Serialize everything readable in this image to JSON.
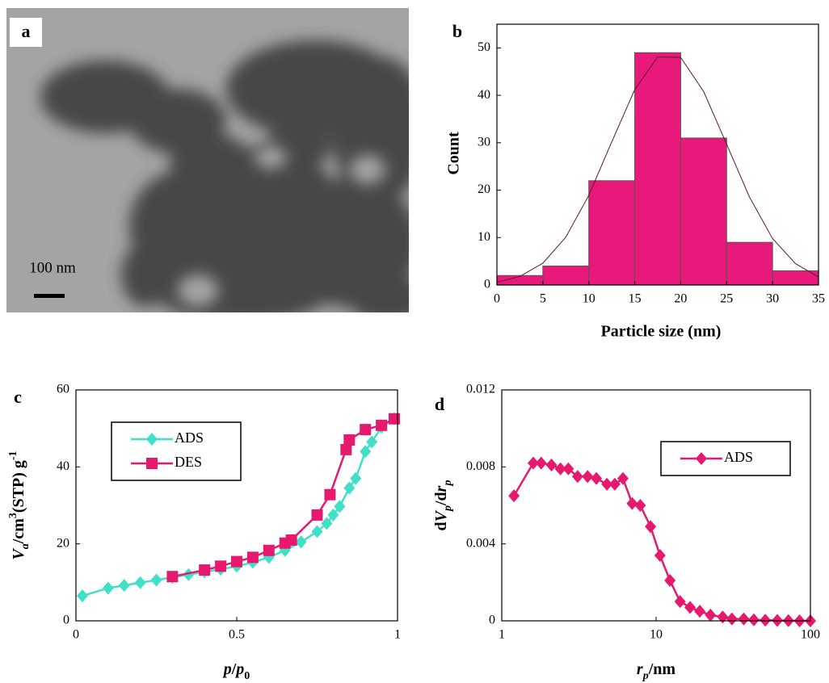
{
  "image_panel": {
    "label": "a",
    "scale_bar": "100 nm"
  },
  "chart_data": [
    {
      "type": "histogram",
      "label": "b",
      "ylabel": "Count",
      "xlabel": "Particle size (nm)",
      "bins": [
        0,
        5,
        10,
        15,
        20,
        25,
        30,
        35
      ],
      "counts": [
        2,
        4,
        22,
        49,
        31,
        9,
        3
      ],
      "color": "#e8197a",
      "fit": {
        "x": [
          0,
          2.5,
          5,
          7.5,
          10,
          12.5,
          15,
          17.5,
          20,
          22.5,
          25,
          27.5,
          30,
          32.5,
          35
        ],
        "y": [
          0.6,
          1.8,
          4.6,
          10.1,
          18.9,
          30.2,
          41.2,
          48.1,
          48.0,
          40.8,
          29.7,
          18.5,
          9.8,
          4.5,
          1.7
        ],
        "color": "#5a1a2a"
      },
      "xlim": [
        0,
        35
      ],
      "xticks": [
        0,
        5,
        10,
        15,
        20,
        25,
        30,
        35
      ],
      "ylim": [
        0,
        55
      ],
      "yticks": [
        0,
        10,
        20,
        30,
        40,
        50
      ]
    },
    {
      "type": "line",
      "label": "c",
      "xlabel": [
        "p",
        "/",
        "p",
        "0"
      ],
      "ylabel": [
        "V",
        "a",
        "/cm",
        "3",
        "(STP) g",
        "-1"
      ],
      "xlim": [
        0,
        1
      ],
      "xticks": [
        0,
        0.5,
        1
      ],
      "ylim": [
        0,
        60
      ],
      "yticks": [
        0,
        20,
        40,
        60
      ],
      "legend": "upper left",
      "series": [
        {
          "name": "ADS",
          "color": "#40e0c8",
          "marker": "diamond",
          "x": [
            0.02,
            0.1,
            0.15,
            0.2,
            0.25,
            0.3,
            0.35,
            0.4,
            0.45,
            0.5,
            0.55,
            0.6,
            0.65,
            0.7,
            0.75,
            0.78,
            0.8,
            0.82,
            0.85,
            0.87,
            0.9,
            0.92,
            0.95,
            0.99
          ],
          "values": [
            6.5,
            8.5,
            9.2,
            9.9,
            10.6,
            11.3,
            12,
            12.7,
            13.4,
            14.2,
            15.2,
            16.5,
            18.3,
            20.5,
            23.2,
            25.3,
            27.5,
            29.7,
            34.5,
            37,
            44,
            46.5,
            50.3,
            52.5
          ]
        },
        {
          "name": "DES",
          "color": "#e6196e",
          "marker": "square",
          "x": [
            0.3,
            0.4,
            0.45,
            0.5,
            0.55,
            0.6,
            0.65,
            0.67,
            0.75,
            0.79,
            0.84,
            0.85,
            0.9,
            0.95,
            0.99
          ],
          "values": [
            11.5,
            13.2,
            14.2,
            15.4,
            16.5,
            18.3,
            20.2,
            21,
            27.5,
            32.8,
            44.5,
            47,
            49.7,
            50.8,
            52.5
          ]
        }
      ]
    },
    {
      "type": "line",
      "label": "d",
      "xlabel": [
        "r",
        "p",
        "/nm"
      ],
      "ylabel": [
        "d",
        "V",
        "p",
        "/d",
        "r",
        "p"
      ],
      "xscale": "log",
      "xlim": [
        1,
        100
      ],
      "xticks": [
        1,
        10,
        100
      ],
      "ylim": [
        0,
        0.012
      ],
      "yticks": [
        0,
        0.004,
        0.008,
        0.012
      ],
      "legend": "upper right",
      "series": [
        {
          "name": "ADS",
          "color": "#e6196e",
          "marker": "diamond",
          "x": [
            1.2,
            1.6,
            1.8,
            2.1,
            2.4,
            2.7,
            3.1,
            3.6,
            4.1,
            4.8,
            5.4,
            6.1,
            7.0,
            7.9,
            9.2,
            10.6,
            12.3,
            14.3,
            16.6,
            19.2,
            22.5,
            27,
            31,
            37,
            43,
            51,
            61,
            72,
            85,
            100
          ],
          "values": [
            0.0065,
            0.0082,
            0.0082,
            0.0081,
            0.0079,
            0.0079,
            0.0075,
            0.0075,
            0.0074,
            0.0071,
            0.0071,
            0.0074,
            0.0061,
            0.006,
            0.0049,
            0.0034,
            0.0021,
            0.001,
            0.0007,
            0.0005,
            0.0003,
            0.0002,
            0.0001,
            0.0001,
            5e-05,
            3e-05,
            2e-05,
            1e-05,
            0,
            0
          ]
        }
      ]
    }
  ]
}
